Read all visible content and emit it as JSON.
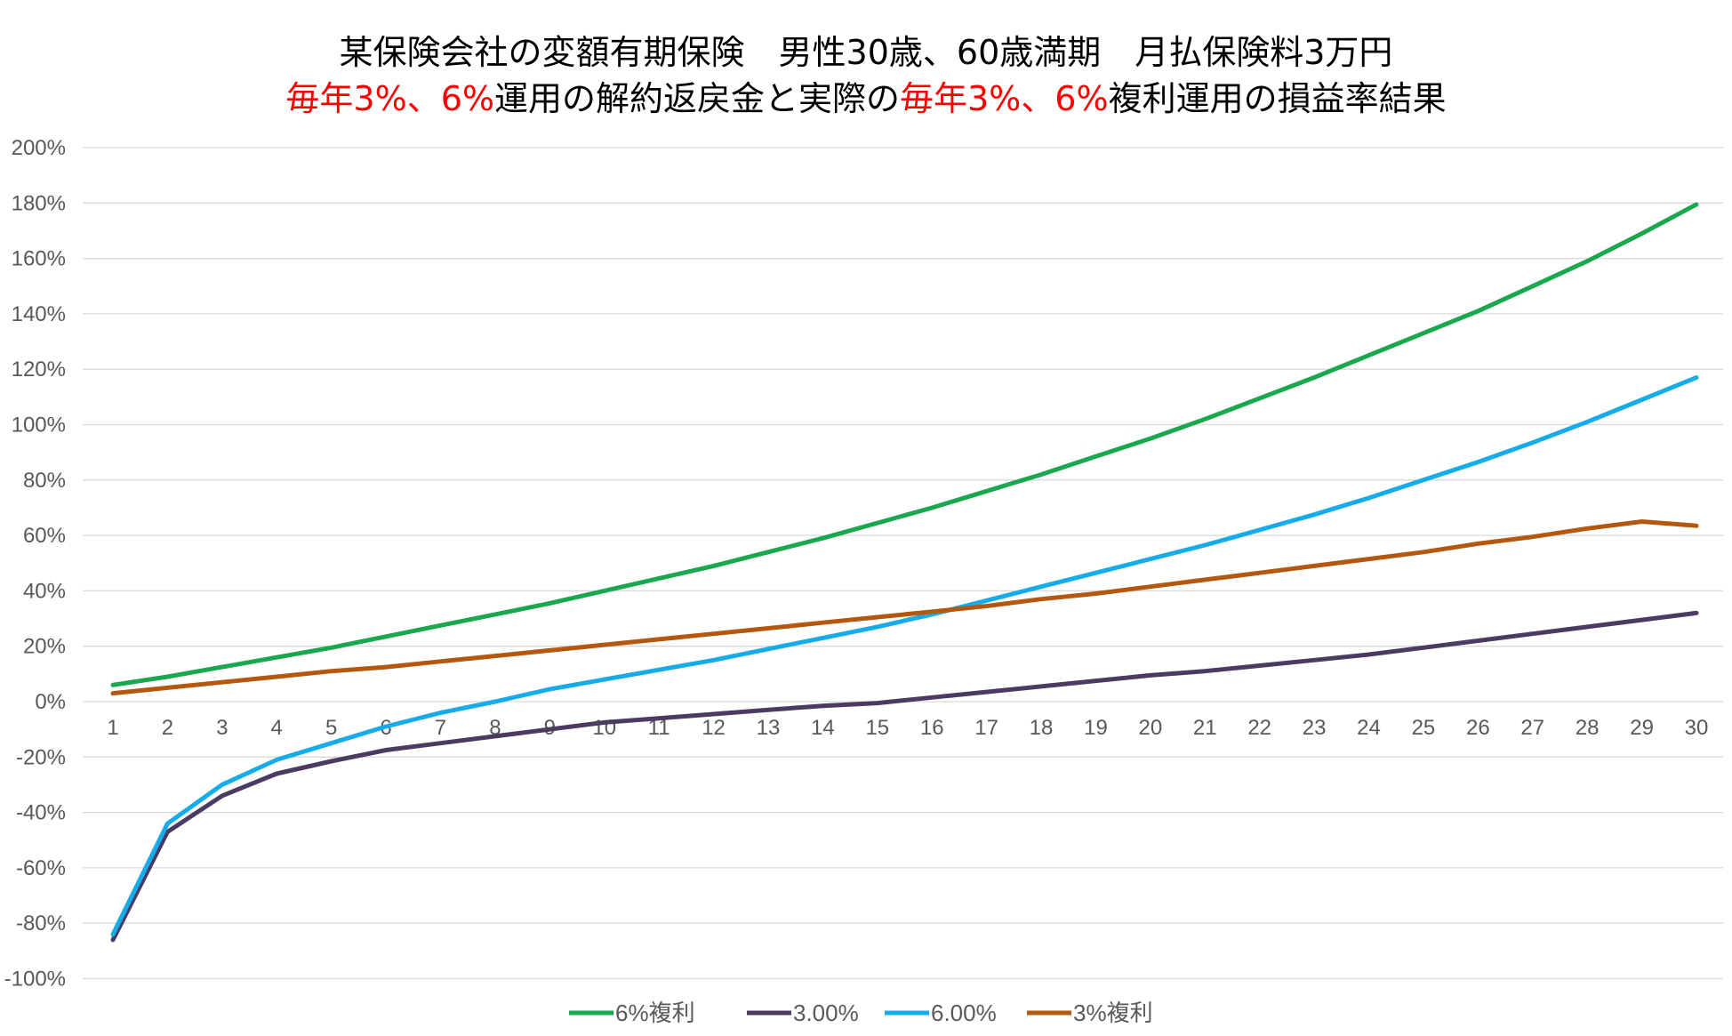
{
  "colors": {
    "green": "#1aa84f",
    "purple": "#4b3a62",
    "blue": "#16acea",
    "orange": "#b5580f",
    "red": "#ff0000",
    "grid": "#d9d9d9"
  },
  "chart_data": {
    "type": "line",
    "title_line1": "某保険会社の変額有期保険　男性30歳、60歳満期　月払保険料3万円",
    "title_line2_parts": [
      {
        "text": "毎年3%、6%",
        "highlight": true
      },
      {
        "text": "運用の解約返戻金と実際の",
        "highlight": false
      },
      {
        "text": "毎年3%、6%",
        "highlight": true
      },
      {
        "text": "複利運用の損益率結果",
        "highlight": false
      }
    ],
    "xlabel": "",
    "ylabel": "",
    "ylim": [
      -100,
      200
    ],
    "y_ticks": [
      "200%",
      "180%",
      "160%",
      "140%",
      "120%",
      "100%",
      "80%",
      "60%",
      "40%",
      "20%",
      "0%",
      "-20%",
      "-40%",
      "-60%",
      "-80%",
      "-100%"
    ],
    "y_tick_values": [
      200,
      180,
      160,
      140,
      120,
      100,
      80,
      60,
      40,
      20,
      0,
      -20,
      -40,
      -60,
      -80,
      -100
    ],
    "grid": true,
    "legend_position": "bottom",
    "categories": [
      "1",
      "2",
      "3",
      "4",
      "5",
      "6",
      "7",
      "8",
      "9",
      "10",
      "11",
      "12",
      "13",
      "14",
      "15",
      "16",
      "17",
      "18",
      "19",
      "20",
      "21",
      "22",
      "23",
      "24",
      "25",
      "26",
      "27",
      "28",
      "29",
      "30"
    ],
    "series": [
      {
        "name": "6%複利",
        "color": "#1aa84f",
        "values": [
          6,
          9,
          12.5,
          16,
          19.5,
          23.5,
          27.5,
          31.5,
          35.5,
          40,
          44.5,
          49,
          54,
          59,
          64.5,
          70,
          76,
          82,
          88.5,
          95,
          102,
          109.5,
          117,
          125,
          133,
          141,
          150,
          159,
          169,
          179.5
        ]
      },
      {
        "name": "3.00%",
        "color": "#4b3a62",
        "values": [
          -86,
          -47,
          -34,
          -26,
          -21.5,
          -17.5,
          -15,
          -12.5,
          -10,
          -7.5,
          -6,
          -4.5,
          -3,
          -1.5,
          -0.5,
          1.5,
          3.5,
          5.5,
          7.5,
          9.5,
          11,
          13,
          15,
          17,
          19.5,
          22,
          24.5,
          27,
          29.5,
          32
        ]
      },
      {
        "name": "6.00%",
        "color": "#16acea",
        "values": [
          -84,
          -44,
          -30,
          -21,
          -15,
          -9,
          -4,
          0,
          4.5,
          8,
          11.5,
          15,
          19,
          23,
          27,
          31.5,
          36.5,
          41.5,
          46.5,
          51.5,
          56.5,
          62,
          67.5,
          73.5,
          80,
          86.5,
          93.5,
          101,
          109,
          117
        ]
      },
      {
        "name": "3%複利",
        "color": "#b5580f",
        "values": [
          3,
          5,
          7,
          9,
          11,
          12.5,
          14.5,
          16.5,
          18.5,
          20.5,
          22.5,
          24.5,
          26.5,
          28.5,
          30.5,
          32.5,
          34.5,
          37,
          39,
          41.5,
          44,
          46.5,
          49,
          51.5,
          54,
          57,
          59.5,
          62.5,
          65,
          63.5
        ]
      }
    ]
  }
}
